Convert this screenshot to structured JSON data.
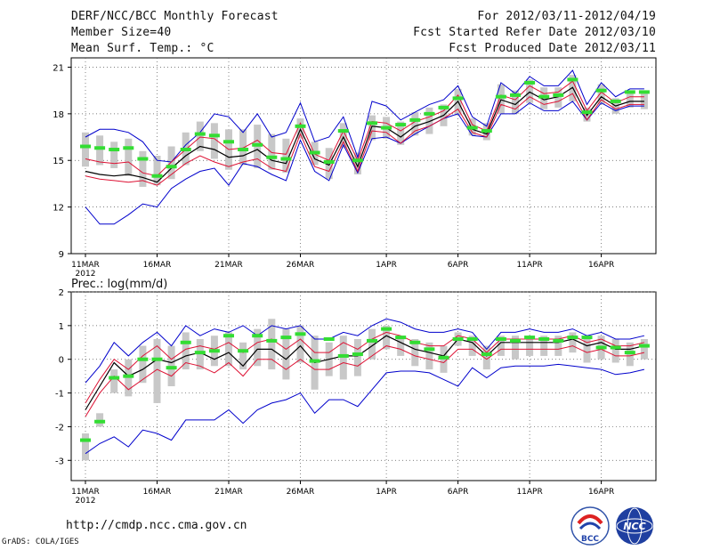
{
  "header": {
    "title": "DERF/NCC/BCC Monthly Forecast",
    "member": "Member Size=40",
    "variable": "Mean Surf. Temp.: °C",
    "period": "For 2012/03/11-2012/04/19",
    "started": "Fcst Started Refer Date 2012/03/10",
    "produced": "Fcst Produced Date 2012/03/11"
  },
  "footer": {
    "url": "http://cmdp.ncc.cma.gov.cn",
    "grads": "GrADS: COLA/IGES"
  },
  "logos": {
    "bcc_text": "BCC",
    "ncc_text": "NCC"
  },
  "colors": {
    "envelope": "#0000cc",
    "spread": "#dd1133",
    "mean": "#000000",
    "box": "#c8c8c8",
    "obs": "#33dd33"
  },
  "chart_data": [
    {
      "type": "line",
      "title": "Mean Surf. Temp.: °C",
      "ylim": [
        9,
        21.6
      ],
      "yticks": [
        9,
        12,
        15,
        18,
        21
      ],
      "xticks": [
        {
          "day": 0,
          "label": "11MAR",
          "sub": "2012"
        },
        {
          "day": 5,
          "label": "16MAR"
        },
        {
          "day": 10,
          "label": "21MAR"
        },
        {
          "day": 15,
          "label": "26MAR"
        },
        {
          "day": 21,
          "label": "1APR"
        },
        {
          "day": 26,
          "label": "6APR"
        },
        {
          "day": 31,
          "label": "11APR"
        },
        {
          "day": 36,
          "label": "16APR"
        }
      ],
      "upper": [
        16.5,
        17.0,
        17.0,
        16.8,
        16.2,
        15.0,
        14.9,
        16.0,
        16.8,
        18.0,
        17.8,
        16.8,
        18.0,
        16.5,
        16.8,
        18.7,
        16.2,
        16.5,
        17.8,
        15.2,
        18.8,
        18.5,
        17.6,
        18.1,
        18.6,
        18.9,
        19.8,
        17.8,
        17.2,
        20.0,
        19.3,
        20.4,
        19.8,
        19.8,
        20.8,
        18.6,
        20.0,
        19.1,
        19.6,
        19.6
      ],
      "lower": [
        12.0,
        10.9,
        10.9,
        11.5,
        12.2,
        12.0,
        13.2,
        13.8,
        14.3,
        14.5,
        13.4,
        14.8,
        14.6,
        14.1,
        13.7,
        16.3,
        14.3,
        13.7,
        16.0,
        14.2,
        16.4,
        16.5,
        16.1,
        16.7,
        17.2,
        17.7,
        18.0,
        16.6,
        16.5,
        18.0,
        18.0,
        18.7,
        18.2,
        18.2,
        18.8,
        17.6,
        18.7,
        18.2,
        18.5,
        18.5
      ],
      "spread_hi": [
        15.1,
        14.9,
        14.8,
        14.9,
        14.2,
        14.0,
        14.9,
        15.7,
        16.5,
        16.4,
        15.7,
        15.8,
        16.3,
        15.5,
        15.4,
        17.4,
        15.4,
        15.0,
        16.9,
        15.0,
        17.5,
        17.4,
        16.9,
        17.5,
        17.8,
        18.2,
        19.2,
        17.3,
        16.9,
        19.2,
        18.9,
        19.8,
        19.3,
        19.4,
        20.1,
        18.2,
        19.4,
        18.7,
        19.1,
        19.1
      ],
      "spread_lo": [
        14.0,
        13.8,
        13.7,
        13.6,
        13.7,
        13.4,
        14.1,
        14.8,
        15.3,
        14.9,
        14.6,
        14.9,
        15.1,
        14.5,
        14.3,
        16.7,
        14.6,
        14.3,
        16.2,
        14.3,
        16.9,
        16.8,
        16.1,
        16.9,
        17.2,
        17.7,
        18.3,
        16.8,
        16.5,
        18.6,
        18.3,
        19.1,
        18.6,
        18.8,
        19.3,
        17.6,
        18.9,
        18.3,
        18.6,
        18.6
      ],
      "mean": [
        14.3,
        14.1,
        14.0,
        14.1,
        13.9,
        13.6,
        14.5,
        15.3,
        15.9,
        15.7,
        15.2,
        15.3,
        15.7,
        15.0,
        14.8,
        17.0,
        15.1,
        14.7,
        16.5,
        14.6,
        17.2,
        17.1,
        16.5,
        17.2,
        17.5,
        17.9,
        18.8,
        17.0,
        16.7,
        18.9,
        18.6,
        19.4,
        18.9,
        19.1,
        19.7,
        17.9,
        19.1,
        18.5,
        18.8,
        18.8
      ],
      "box_hi": [
        16.8,
        16.6,
        16.2,
        16.4,
        15.6,
        15.3,
        15.9,
        16.8,
        17.5,
        17.4,
        17.0,
        17.0,
        17.3,
        16.7,
        16.4,
        17.7,
        16.2,
        15.8,
        17.4,
        15.5,
        17.9,
        17.8,
        17.5,
        18.1,
        18.4,
        18.6,
        19.6,
        17.7,
        17.4,
        19.9,
        19.5,
        20.2,
        19.7,
        19.7,
        20.5,
        18.4,
        19.9,
        19.0,
        19.3,
        19.3
      ],
      "box_lo": [
        14.6,
        14.7,
        14.5,
        14.0,
        13.3,
        13.4,
        13.8,
        14.7,
        15.6,
        15.1,
        14.4,
        14.7,
        14.5,
        14.4,
        14.2,
        16.4,
        14.7,
        13.8,
        15.8,
        14.1,
        16.3,
        16.4,
        16.0,
        16.6,
        16.7,
        17.2,
        17.9,
        16.6,
        16.3,
        18.0,
        18.0,
        18.7,
        18.3,
        18.4,
        18.8,
        17.5,
        18.6,
        18.0,
        18.4,
        18.3
      ],
      "obs": [
        15.9,
        15.8,
        15.7,
        15.8,
        15.1,
        14.0,
        14.6,
        15.7,
        16.7,
        16.6,
        16.2,
        15.7,
        16.0,
        15.2,
        15.1,
        17.2,
        15.5,
        14.9,
        16.9,
        15.0,
        17.4,
        17.1,
        17.3,
        17.6,
        18.0,
        18.4,
        19.0,
        17.1,
        16.9,
        19.1,
        19.2,
        20.0,
        19.1,
        19.2,
        20.2,
        18.1,
        19.5,
        18.8,
        19.4,
        19.4
      ]
    },
    {
      "type": "line",
      "title": "Prec.: log(mm/d)",
      "ylim": [
        -3.6,
        2
      ],
      "yticks": [
        -3,
        -2,
        -1,
        0,
        1,
        2
      ],
      "xticks": [
        {
          "day": 0,
          "label": "11MAR",
          "sub": "2012"
        },
        {
          "day": 5,
          "label": "16MAR"
        },
        {
          "day": 10,
          "label": "21MAR"
        },
        {
          "day": 15,
          "label": "26MAR"
        },
        {
          "day": 21,
          "label": "1APR"
        },
        {
          "day": 26,
          "label": "6APR"
        },
        {
          "day": 31,
          "label": "11APR"
        },
        {
          "day": 36,
          "label": "16APR"
        }
      ],
      "upper": [
        -0.7,
        -0.2,
        0.5,
        0.1,
        0.5,
        0.8,
        0.4,
        1.0,
        0.7,
        0.9,
        0.8,
        1.0,
        0.7,
        1.0,
        0.9,
        1.0,
        0.6,
        0.6,
        0.8,
        0.7,
        1.0,
        1.2,
        1.1,
        0.9,
        0.8,
        0.8,
        0.9,
        0.8,
        0.3,
        0.8,
        0.8,
        0.9,
        0.8,
        0.8,
        0.9,
        0.7,
        0.8,
        0.6,
        0.6,
        0.7
      ],
      "lower": [
        -2.8,
        -2.5,
        -2.3,
        -2.6,
        -2.1,
        -2.2,
        -2.4,
        -1.8,
        -1.8,
        -1.8,
        -1.5,
        -1.9,
        -1.5,
        -1.3,
        -1.2,
        -1.0,
        -1.6,
        -1.2,
        -1.2,
        -1.4,
        -0.9,
        -0.4,
        -0.35,
        -0.35,
        -0.4,
        -0.6,
        -0.8,
        -0.25,
        -0.55,
        -0.25,
        -0.2,
        -0.2,
        -0.2,
        -0.15,
        -0.2,
        -0.25,
        -0.3,
        -0.45,
        -0.4,
        -0.3
      ],
      "spread_hi": [
        -1.3,
        -0.6,
        0.0,
        -0.3,
        0.1,
        0.4,
        0.0,
        0.3,
        0.4,
        0.3,
        0.5,
        0.2,
        0.5,
        0.6,
        0.3,
        0.6,
        0.2,
        0.2,
        0.5,
        0.3,
        0.6,
        0.8,
        0.7,
        0.5,
        0.4,
        0.4,
        0.7,
        0.6,
        0.2,
        0.6,
        0.6,
        0.6,
        0.6,
        0.6,
        0.7,
        0.5,
        0.6,
        0.4,
        0.4,
        0.5
      ],
      "spread_lo": [
        -1.7,
        -1.0,
        -0.5,
        -0.9,
        -0.6,
        -0.3,
        -0.5,
        -0.1,
        -0.2,
        -0.4,
        -0.1,
        -0.5,
        0.0,
        0.0,
        -0.3,
        0.0,
        -0.3,
        -0.3,
        -0.1,
        -0.2,
        0.1,
        0.4,
        0.3,
        0.1,
        0.0,
        -0.1,
        0.3,
        0.3,
        0.0,
        0.3,
        0.3,
        0.3,
        0.3,
        0.3,
        0.4,
        0.2,
        0.3,
        0.1,
        0.1,
        0.2
      ],
      "mean": [
        -1.5,
        -0.8,
        -0.1,
        -0.5,
        -0.3,
        0.0,
        -0.1,
        0.1,
        0.2,
        0.0,
        0.2,
        -0.2,
        0.3,
        0.3,
        0.0,
        0.4,
        -0.1,
        0.0,
        0.1,
        0.1,
        0.4,
        0.7,
        0.5,
        0.3,
        0.2,
        0.1,
        0.6,
        0.5,
        0.1,
        0.5,
        0.5,
        0.5,
        0.5,
        0.5,
        0.6,
        0.4,
        0.5,
        0.3,
        0.3,
        0.4
      ],
      "box_hi": [
        -2.2,
        -1.6,
        -0.3,
        0.0,
        0.4,
        0.6,
        0.4,
        0.8,
        0.6,
        0.7,
        0.8,
        0.5,
        0.9,
        1.2,
        0.9,
        1.0,
        0.7,
        0.5,
        0.7,
        0.6,
        0.9,
        1.0,
        0.7,
        0.6,
        0.5,
        0.4,
        0.8,
        0.7,
        0.4,
        0.7,
        0.7,
        0.7,
        0.7,
        0.7,
        0.8,
        0.6,
        0.7,
        0.6,
        0.5,
        0.6
      ],
      "box_lo": [
        -3.0,
        -2.0,
        -1.0,
        -1.1,
        -0.7,
        -1.3,
        -0.8,
        -0.3,
        -0.3,
        -0.2,
        -0.2,
        -0.3,
        -0.2,
        -0.3,
        -0.6,
        -0.1,
        -0.9,
        -0.5,
        -0.6,
        -0.5,
        0.0,
        0.3,
        0.1,
        -0.2,
        -0.3,
        -0.4,
        0.4,
        0.1,
        -0.3,
        0.1,
        0.0,
        0.1,
        0.1,
        0.1,
        0.2,
        -0.1,
        0.0,
        -0.1,
        -0.2,
        0.0
      ],
      "obs": [
        -2.4,
        -1.85,
        -0.55,
        -0.5,
        0.0,
        0.0,
        -0.25,
        0.5,
        0.2,
        0.25,
        0.7,
        0.25,
        0.7,
        0.55,
        0.65,
        0.75,
        -0.05,
        0.6,
        0.1,
        0.15,
        0.55,
        0.9,
        0.65,
        0.5,
        0.3,
        0.05,
        0.6,
        0.6,
        0.15,
        0.6,
        0.55,
        0.65,
        0.6,
        0.55,
        0.65,
        0.65,
        0.35,
        0.35,
        0.2,
        0.4
      ]
    }
  ]
}
